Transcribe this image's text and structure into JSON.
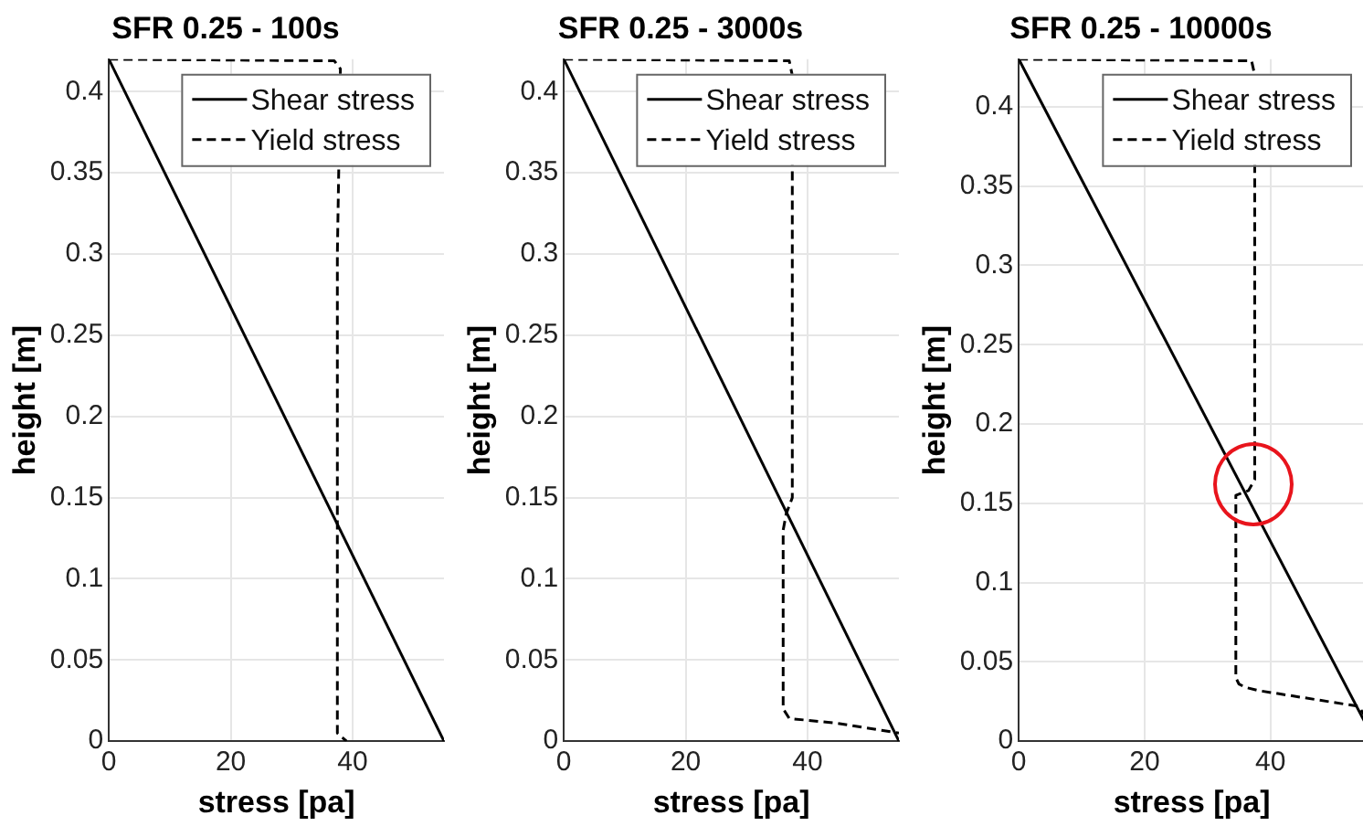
{
  "chart_data": [
    {
      "type": "line",
      "title": "SFR 0.25 - 100s",
      "xlabel": "stress [pa]",
      "ylabel": "height [m]",
      "xlim": [
        0,
        55
      ],
      "ylim": [
        0,
        0.42
      ],
      "xticks": [
        0,
        20,
        40
      ],
      "yticks": [
        0,
        0.05,
        0.1,
        0.15,
        0.2,
        0.25,
        0.3,
        0.35,
        0.4
      ],
      "grid": true,
      "legend": "top right",
      "series": [
        {
          "name": "Shear stress",
          "color": "#000000",
          "line_style": "solid",
          "x": [
            0,
            55
          ],
          "values": [
            0.42,
            0
          ]
        },
        {
          "name": "Yield stress",
          "color": "#000000",
          "line_style": "dashed",
          "x": [
            0,
            37,
            38,
            37.5,
            37.5,
            39
          ],
          "values": [
            0.42,
            0.419,
            0.414,
            0.3,
            0.005,
            0
          ]
        }
      ]
    },
    {
      "type": "line",
      "title": "SFR 0.25 - 3000s",
      "xlabel": "stress [pa]",
      "ylabel": "height [m]",
      "xlim": [
        0,
        55
      ],
      "ylim": [
        0,
        0.42
      ],
      "xticks": [
        0,
        20,
        40
      ],
      "yticks": [
        0,
        0.05,
        0.1,
        0.15,
        0.2,
        0.25,
        0.3,
        0.35,
        0.4
      ],
      "grid": true,
      "legend": "top right",
      "series": [
        {
          "name": "Shear stress",
          "color": "#000000",
          "line_style": "solid",
          "x": [
            0,
            55
          ],
          "values": [
            0.42,
            0
          ]
        },
        {
          "name": "Yield stress",
          "color": "#000000",
          "line_style": "dashed",
          "x": [
            0,
            37,
            37.5,
            37.5,
            36.5,
            36,
            36,
            37,
            45,
            55
          ],
          "values": [
            0.42,
            0.419,
            0.41,
            0.15,
            0.14,
            0.13,
            0.02,
            0.014,
            0.011,
            0.005
          ]
        }
      ]
    },
    {
      "type": "line",
      "title": "SFR 0.25 - 10000s",
      "xlabel": "stress [pa]",
      "ylabel": "height [m]",
      "xlim": [
        0,
        55
      ],
      "ylim": [
        0,
        0.43
      ],
      "xticks": [
        0,
        20,
        40
      ],
      "yticks": [
        0,
        0.05,
        0.1,
        0.15,
        0.2,
        0.25,
        0.3,
        0.35,
        0.4
      ],
      "grid": true,
      "legend": "top right",
      "series": [
        {
          "name": "Shear stress",
          "color": "#000000",
          "line_style": "solid",
          "x": [
            0,
            55
          ],
          "values": [
            0.43,
            0.012
          ]
        },
        {
          "name": "Yield stress",
          "color": "#000000",
          "line_style": "dashed",
          "x": [
            0,
            37,
            37.5,
            37.5,
            36.5,
            34.5,
            34.5,
            35,
            36,
            38,
            54,
            55
          ],
          "values": [
            0.43,
            0.429,
            0.42,
            0.165,
            0.158,
            0.155,
            0.04,
            0.036,
            0.034,
            0.032,
            0.022,
            0.016
          ]
        }
      ]
    }
  ]
}
